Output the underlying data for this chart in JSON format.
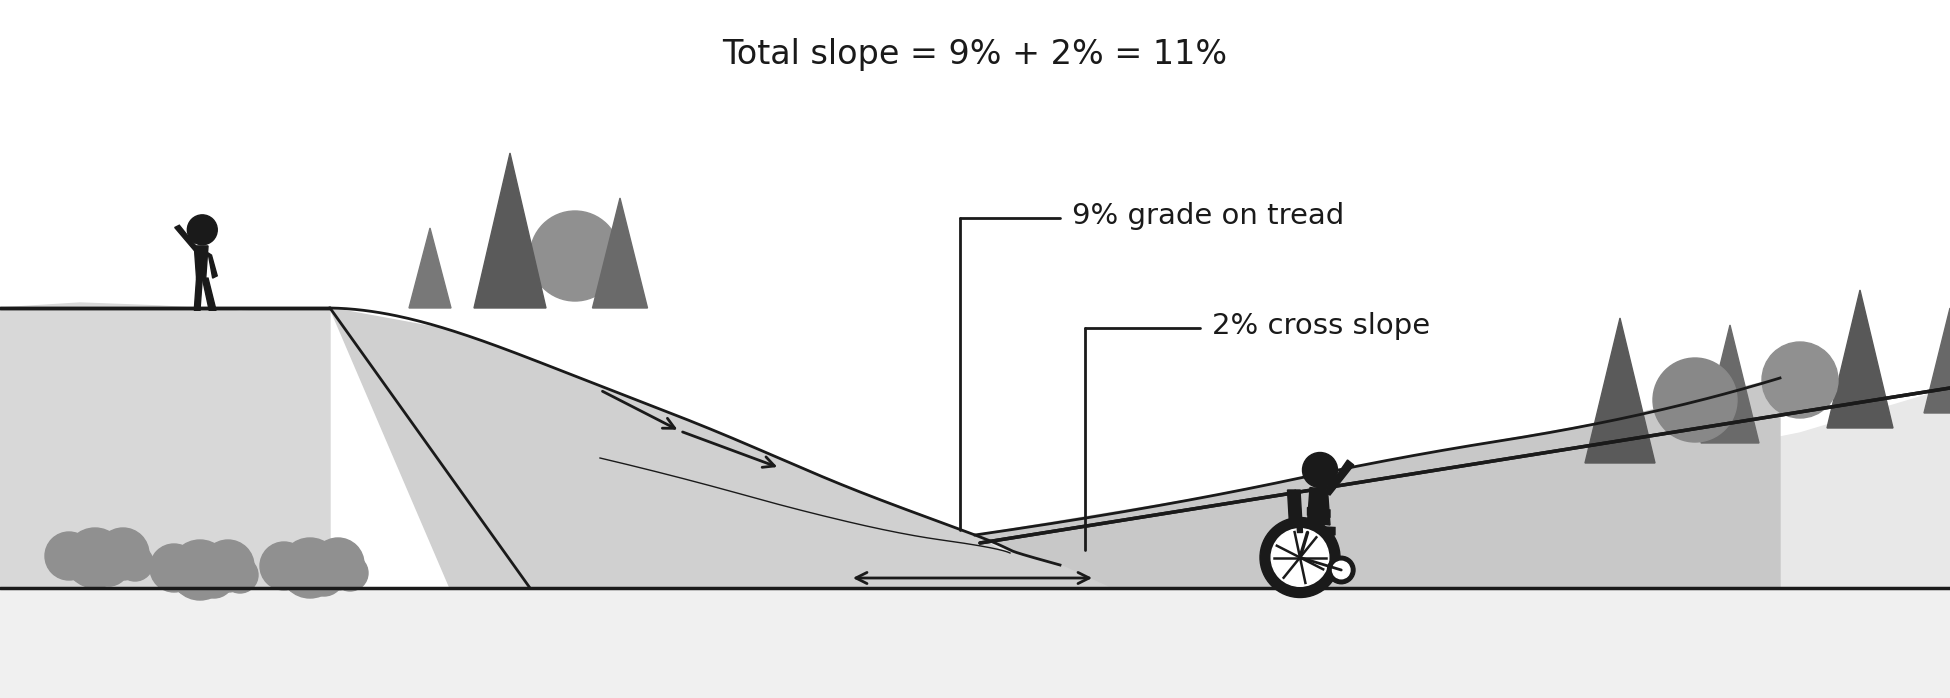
{
  "title": "Total slope = 9% + 2% = 11%",
  "title_fontsize": 24,
  "label_9pct": "9% grade on tread",
  "label_2pct": "2% cross slope",
  "label_fontsize": 21,
  "bg_color": "#ffffff",
  "dark_color": "#1a1a1a",
  "mid_gray": "#808080",
  "path_fill": "#d0d0d0",
  "cross_fill": "#c8c8c8",
  "bush_color": "#909090",
  "tree_dark": "#606060",
  "tree_mid": "#808080",
  "tree_light": "#a0a0a0"
}
